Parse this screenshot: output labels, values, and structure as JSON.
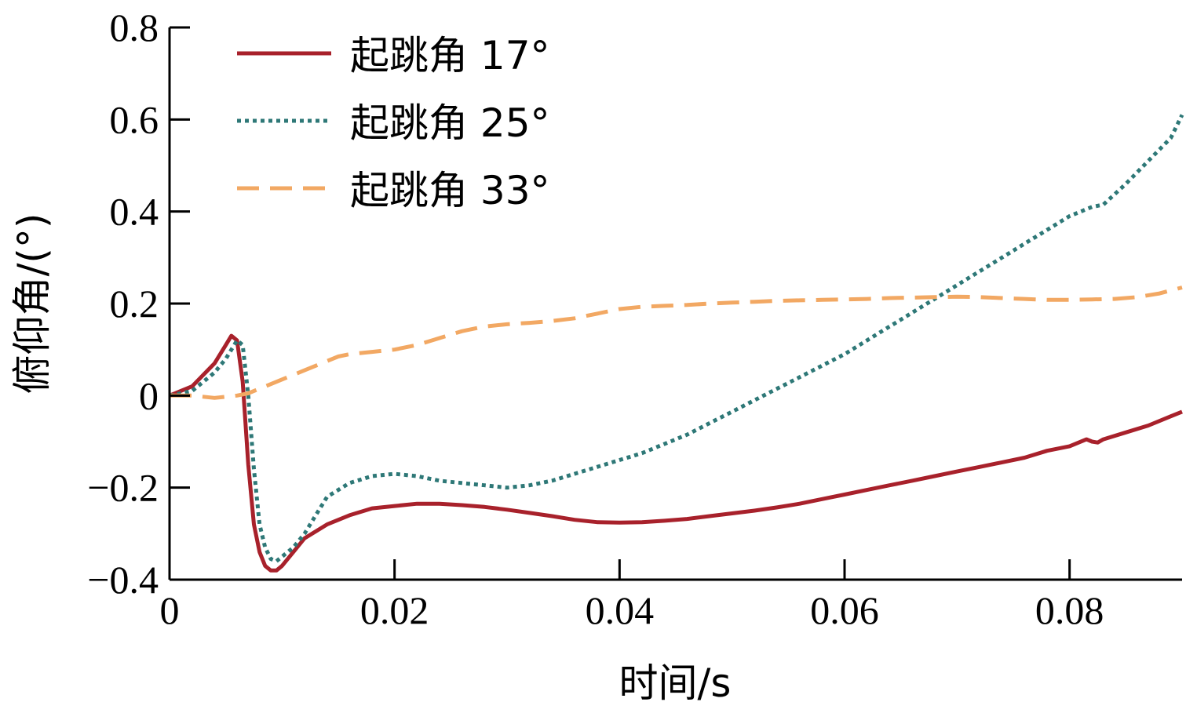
{
  "chart_data": {
    "type": "line",
    "xlabel": "时间/s",
    "ylabel": "俯仰角/(°)",
    "xlim": [
      0,
      0.09
    ],
    "ylim": [
      -0.4,
      0.8
    ],
    "xticks": [
      "0",
      "0.02",
      "0.04",
      "0.06",
      "0.08"
    ],
    "xtick_values": [
      0,
      0.02,
      0.04,
      0.06,
      0.08
    ],
    "yticks": [
      "−0.4",
      "−0.2",
      "0",
      "0.2",
      "0.4",
      "0.6",
      "0.8"
    ],
    "ytick_values": [
      -0.4,
      -0.2,
      0,
      0.2,
      0.4,
      0.6,
      0.8
    ],
    "grid": false,
    "legend_position": "top-left",
    "series": [
      {
        "name": "起跳角 17°",
        "color": "#a8212b",
        "dash": "solid",
        "x": [
          0,
          0.002,
          0.004,
          0.005,
          0.0055,
          0.006,
          0.0065,
          0.007,
          0.0075,
          0.008,
          0.0085,
          0.009,
          0.0095,
          0.01,
          0.011,
          0.012,
          0.014,
          0.016,
          0.018,
          0.02,
          0.022,
          0.024,
          0.026,
          0.028,
          0.03,
          0.032,
          0.034,
          0.036,
          0.038,
          0.04,
          0.042,
          0.044,
          0.046,
          0.048,
          0.05,
          0.052,
          0.054,
          0.056,
          0.058,
          0.06,
          0.062,
          0.064,
          0.066,
          0.068,
          0.07,
          0.072,
          0.074,
          0.076,
          0.078,
          0.08,
          0.0815,
          0.082,
          0.0825,
          0.083,
          0.085,
          0.087,
          0.089,
          0.09
        ],
        "y": [
          0,
          0.02,
          0.07,
          0.11,
          0.13,
          0.12,
          0.03,
          -0.15,
          -0.28,
          -0.34,
          -0.37,
          -0.38,
          -0.38,
          -0.37,
          -0.34,
          -0.31,
          -0.28,
          -0.26,
          -0.245,
          -0.24,
          -0.235,
          -0.235,
          -0.238,
          -0.242,
          -0.248,
          -0.255,
          -0.262,
          -0.27,
          -0.275,
          -0.276,
          -0.275,
          -0.272,
          -0.268,
          -0.262,
          -0.256,
          -0.25,
          -0.243,
          -0.235,
          -0.225,
          -0.215,
          -0.205,
          -0.195,
          -0.185,
          -0.175,
          -0.165,
          -0.155,
          -0.145,
          -0.135,
          -0.12,
          -0.11,
          -0.095,
          -0.1,
          -0.102,
          -0.095,
          -0.08,
          -0.065,
          -0.045,
          -0.035
        ]
      },
      {
        "name": "起跳角 25°",
        "color": "#2e7877",
        "dash": "dotted",
        "x": [
          0,
          0.002,
          0.004,
          0.005,
          0.006,
          0.0065,
          0.007,
          0.0075,
          0.008,
          0.0085,
          0.009,
          0.0095,
          0.01,
          0.011,
          0.012,
          0.013,
          0.014,
          0.016,
          0.018,
          0.02,
          0.022,
          0.024,
          0.026,
          0.028,
          0.03,
          0.032,
          0.034,
          0.036,
          0.038,
          0.04,
          0.042,
          0.044,
          0.046,
          0.048,
          0.05,
          0.052,
          0.054,
          0.056,
          0.058,
          0.06,
          0.062,
          0.064,
          0.066,
          0.068,
          0.07,
          0.072,
          0.074,
          0.076,
          0.078,
          0.08,
          0.082,
          0.083,
          0.085,
          0.087,
          0.089,
          0.09
        ],
        "y": [
          0,
          0.01,
          0.05,
          0.08,
          0.12,
          0.11,
          0.0,
          -0.16,
          -0.28,
          -0.33,
          -0.355,
          -0.36,
          -0.35,
          -0.33,
          -0.3,
          -0.26,
          -0.22,
          -0.19,
          -0.175,
          -0.17,
          -0.175,
          -0.185,
          -0.19,
          -0.195,
          -0.2,
          -0.195,
          -0.185,
          -0.17,
          -0.155,
          -0.14,
          -0.125,
          -0.105,
          -0.085,
          -0.06,
          -0.035,
          -0.01,
          0.015,
          0.04,
          0.065,
          0.09,
          0.12,
          0.15,
          0.18,
          0.21,
          0.24,
          0.27,
          0.3,
          0.33,
          0.36,
          0.39,
          0.41,
          0.415,
          0.46,
          0.51,
          0.56,
          0.61
        ]
      },
      {
        "name": "起跳角 33°",
        "color": "#f2a863",
        "dash": "dashed",
        "x": [
          0,
          0.002,
          0.004,
          0.006,
          0.007,
          0.008,
          0.01,
          0.012,
          0.014,
          0.015,
          0.016,
          0.018,
          0.02,
          0.022,
          0.024,
          0.026,
          0.028,
          0.03,
          0.032,
          0.034,
          0.036,
          0.038,
          0.04,
          0.042,
          0.044,
          0.046,
          0.048,
          0.05,
          0.052,
          0.054,
          0.056,
          0.058,
          0.06,
          0.062,
          0.064,
          0.066,
          0.068,
          0.07,
          0.072,
          0.074,
          0.076,
          0.078,
          0.08,
          0.082,
          0.084,
          0.086,
          0.088,
          0.09
        ],
        "y": [
          0,
          0.0,
          -0.005,
          0.0,
          0.005,
          0.015,
          0.035,
          0.055,
          0.075,
          0.085,
          0.09,
          0.095,
          0.1,
          0.11,
          0.125,
          0.14,
          0.15,
          0.155,
          0.158,
          0.162,
          0.168,
          0.178,
          0.188,
          0.193,
          0.195,
          0.197,
          0.2,
          0.202,
          0.204,
          0.206,
          0.207,
          0.208,
          0.209,
          0.21,
          0.212,
          0.213,
          0.214,
          0.215,
          0.214,
          0.212,
          0.21,
          0.208,
          0.208,
          0.209,
          0.21,
          0.214,
          0.222,
          0.235
        ]
      }
    ]
  }
}
